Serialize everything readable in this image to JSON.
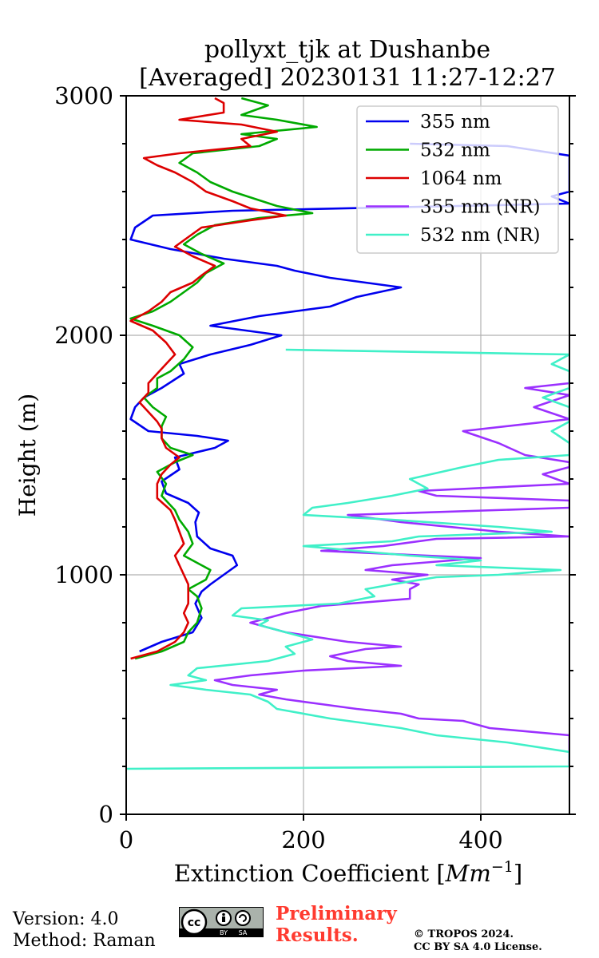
{
  "chart_data": {
    "type": "line",
    "title_line1": "pollyxt_tjk at Dushanbe",
    "title_line2": "[Averaged] 20230131 11:27-12:27",
    "xlabel": "Extinction Coefficient [",
    "xlabel_unit": "Mm",
    "xlabel_exp": "−1",
    "xlabel_close": "]",
    "ylabel": "Height (m)",
    "xlim": [
      0,
      500
    ],
    "ylim": [
      0,
      3000
    ],
    "xticks": [
      0,
      200,
      400
    ],
    "yticks": [
      0,
      1000,
      2000,
      3000
    ],
    "xtick_labels": [
      "0",
      "200",
      "400"
    ],
    "ytick_labels": [
      "0",
      "1000",
      "2000",
      "3000"
    ],
    "grid": true,
    "legend_position": "top-right",
    "series": [
      {
        "name": "355 nm",
        "color": "#0000ee",
        "points": [
          [
            15,
            680
          ],
          [
            40,
            720
          ],
          [
            75,
            760
          ],
          [
            85,
            820
          ],
          [
            78,
            880
          ],
          [
            85,
            930
          ],
          [
            95,
            960
          ],
          [
            110,
            1000
          ],
          [
            125,
            1040
          ],
          [
            120,
            1080
          ],
          [
            95,
            1110
          ],
          [
            80,
            1160
          ],
          [
            78,
            1220
          ],
          [
            82,
            1260
          ],
          [
            70,
            1300
          ],
          [
            45,
            1340
          ],
          [
            40,
            1390
          ],
          [
            60,
            1440
          ],
          [
            55,
            1490
          ],
          [
            100,
            1530
          ],
          [
            115,
            1560
          ],
          [
            80,
            1580
          ],
          [
            25,
            1600
          ],
          [
            5,
            1650
          ],
          [
            10,
            1700
          ],
          [
            20,
            1740
          ],
          [
            40,
            1780
          ],
          [
            65,
            1840
          ],
          [
            60,
            1880
          ],
          [
            95,
            1920
          ],
          [
            140,
            1960
          ],
          [
            175,
            2000
          ],
          [
            95,
            2040
          ],
          [
            150,
            2080
          ],
          [
            230,
            2120
          ],
          [
            260,
            2160
          ],
          [
            310,
            2200
          ],
          [
            230,
            2240
          ],
          [
            190,
            2270
          ],
          [
            170,
            2290
          ],
          [
            110,
            2320
          ],
          [
            50,
            2360
          ],
          [
            5,
            2400
          ],
          [
            10,
            2450
          ],
          [
            30,
            2500
          ],
          [
            120,
            2520
          ],
          [
            500,
            2550
          ],
          [
            480,
            2580
          ],
          [
            500,
            2600
          ],
          [
            500,
            2620
          ],
          [
            500,
            2650
          ],
          [
            500,
            2700
          ],
          [
            500,
            2750
          ],
          [
            430,
            2790
          ],
          [
            320,
            2800
          ]
        ]
      },
      {
        "name": "532 nm",
        "color": "#00aa00",
        "points": [
          [
            10,
            650
          ],
          [
            40,
            680
          ],
          [
            65,
            720
          ],
          [
            70,
            760
          ],
          [
            80,
            800
          ],
          [
            85,
            860
          ],
          [
            80,
            910
          ],
          [
            70,
            940
          ],
          [
            90,
            980
          ],
          [
            95,
            1020
          ],
          [
            80,
            1050
          ],
          [
            65,
            1080
          ],
          [
            75,
            1130
          ],
          [
            70,
            1180
          ],
          [
            60,
            1230
          ],
          [
            55,
            1270
          ],
          [
            40,
            1330
          ],
          [
            45,
            1380
          ],
          [
            35,
            1430
          ],
          [
            55,
            1470
          ],
          [
            75,
            1500
          ],
          [
            50,
            1530
          ],
          [
            40,
            1570
          ],
          [
            40,
            1620
          ],
          [
            45,
            1660
          ],
          [
            30,
            1700
          ],
          [
            20,
            1740
          ],
          [
            35,
            1780
          ],
          [
            35,
            1820
          ],
          [
            50,
            1850
          ],
          [
            65,
            1900
          ],
          [
            75,
            1950
          ],
          [
            60,
            2000
          ],
          [
            30,
            2040
          ],
          [
            5,
            2070
          ],
          [
            30,
            2100
          ],
          [
            50,
            2140
          ],
          [
            65,
            2180
          ],
          [
            80,
            2220
          ],
          [
            90,
            2260
          ],
          [
            110,
            2300
          ],
          [
            85,
            2340
          ],
          [
            65,
            2380
          ],
          [
            80,
            2420
          ],
          [
            100,
            2460
          ],
          [
            150,
            2490
          ],
          [
            210,
            2510
          ],
          [
            170,
            2540
          ],
          [
            145,
            2570
          ],
          [
            120,
            2600
          ],
          [
            95,
            2640
          ],
          [
            80,
            2680
          ],
          [
            60,
            2720
          ],
          [
            75,
            2760
          ],
          [
            150,
            2790
          ],
          [
            170,
            2820
          ],
          [
            130,
            2840
          ],
          [
            215,
            2870
          ],
          [
            170,
            2900
          ],
          [
            130,
            2920
          ],
          [
            160,
            2960
          ],
          [
            130,
            2990
          ]
        ]
      },
      {
        "name": "1064 nm",
        "color": "#dd0000",
        "points": [
          [
            5,
            650
          ],
          [
            35,
            680
          ],
          [
            55,
            720
          ],
          [
            65,
            760
          ],
          [
            70,
            800
          ],
          [
            65,
            840
          ],
          [
            70,
            880
          ],
          [
            70,
            920
          ],
          [
            70,
            960
          ],
          [
            65,
            1000
          ],
          [
            60,
            1040
          ],
          [
            55,
            1080
          ],
          [
            65,
            1130
          ],
          [
            60,
            1180
          ],
          [
            55,
            1230
          ],
          [
            50,
            1270
          ],
          [
            35,
            1320
          ],
          [
            35,
            1380
          ],
          [
            40,
            1420
          ],
          [
            50,
            1460
          ],
          [
            60,
            1490
          ],
          [
            45,
            1530
          ],
          [
            40,
            1570
          ],
          [
            40,
            1610
          ],
          [
            35,
            1640
          ],
          [
            25,
            1680
          ],
          [
            15,
            1720
          ],
          [
            25,
            1760
          ],
          [
            25,
            1800
          ],
          [
            35,
            1840
          ],
          [
            45,
            1880
          ],
          [
            55,
            1920
          ],
          [
            45,
            1970
          ],
          [
            30,
            2020
          ],
          [
            5,
            2060
          ],
          [
            25,
            2100
          ],
          [
            40,
            2140
          ],
          [
            50,
            2180
          ],
          [
            75,
            2220
          ],
          [
            85,
            2250
          ],
          [
            100,
            2290
          ],
          [
            75,
            2330
          ],
          [
            55,
            2370
          ],
          [
            70,
            2410
          ],
          [
            85,
            2450
          ],
          [
            140,
            2480
          ],
          [
            180,
            2500
          ],
          [
            140,
            2530
          ],
          [
            120,
            2560
          ],
          [
            90,
            2600
          ],
          [
            75,
            2640
          ],
          [
            55,
            2680
          ],
          [
            35,
            2710
          ],
          [
            20,
            2740
          ],
          [
            60,
            2760
          ],
          [
            140,
            2790
          ],
          [
            130,
            2820
          ],
          [
            170,
            2850
          ],
          [
            130,
            2880
          ],
          [
            60,
            2900
          ],
          [
            110,
            2930
          ],
          [
            110,
            2970
          ],
          [
            100,
            2990
          ]
        ]
      },
      {
        "name": "355 nm (NR)",
        "color": "#9b30ff",
        "points": [
          [
            500,
            200
          ],
          [
            500,
            250
          ],
          [
            500,
            330
          ],
          [
            410,
            360
          ],
          [
            380,
            390
          ],
          [
            330,
            400
          ],
          [
            310,
            420
          ],
          [
            260,
            440
          ],
          [
            220,
            460
          ],
          [
            180,
            480
          ],
          [
            150,
            500
          ],
          [
            170,
            520
          ],
          [
            120,
            540
          ],
          [
            100,
            560
          ],
          [
            140,
            580
          ],
          [
            200,
            600
          ],
          [
            310,
            620
          ],
          [
            250,
            640
          ],
          [
            230,
            660
          ],
          [
            270,
            690
          ],
          [
            310,
            700
          ],
          [
            250,
            720
          ],
          [
            180,
            760
          ],
          [
            140,
            800
          ],
          [
            180,
            840
          ],
          [
            220,
            870
          ],
          [
            320,
            900
          ],
          [
            320,
            940
          ],
          [
            330,
            960
          ],
          [
            300,
            980
          ],
          [
            340,
            1000
          ],
          [
            270,
            1020
          ],
          [
            300,
            1040
          ],
          [
            400,
            1070
          ],
          [
            220,
            1100
          ],
          [
            290,
            1120
          ],
          [
            350,
            1150
          ],
          [
            500,
            1160
          ],
          [
            420,
            1180
          ],
          [
            310,
            1220
          ],
          [
            250,
            1250
          ],
          [
            500,
            1280
          ],
          [
            500,
            1310
          ],
          [
            350,
            1330
          ],
          [
            330,
            1350
          ],
          [
            500,
            1380
          ],
          [
            470,
            1420
          ],
          [
            500,
            1450
          ],
          [
            500,
            1470
          ],
          [
            450,
            1500
          ],
          [
            420,
            1550
          ],
          [
            380,
            1600
          ],
          [
            500,
            1650
          ],
          [
            460,
            1700
          ],
          [
            500,
            1750
          ],
          [
            450,
            1780
          ],
          [
            500,
            1800
          ]
        ]
      },
      {
        "name": "532 nm (NR)",
        "color": "#40f0c8",
        "points": [
          [
            0,
            190
          ],
          [
            500,
            200
          ],
          [
            500,
            260
          ],
          [
            430,
            300
          ],
          [
            350,
            330
          ],
          [
            310,
            360
          ],
          [
            230,
            400
          ],
          [
            170,
            440
          ],
          [
            160,
            470
          ],
          [
            140,
            500
          ],
          [
            90,
            520
          ],
          [
            50,
            540
          ],
          [
            90,
            560
          ],
          [
            70,
            580
          ],
          [
            80,
            610
          ],
          [
            160,
            640
          ],
          [
            190,
            670
          ],
          [
            180,
            700
          ],
          [
            210,
            730
          ],
          [
            180,
            760
          ],
          [
            150,
            790
          ],
          [
            160,
            810
          ],
          [
            120,
            830
          ],
          [
            130,
            860
          ],
          [
            240,
            880
          ],
          [
            280,
            910
          ],
          [
            270,
            940
          ],
          [
            300,
            960
          ],
          [
            350,
            990
          ],
          [
            420,
            1000
          ],
          [
            490,
            1020
          ],
          [
            350,
            1040
          ],
          [
            400,
            1060
          ],
          [
            320,
            1080
          ],
          [
            260,
            1100
          ],
          [
            200,
            1120
          ],
          [
            300,
            1140
          ],
          [
            330,
            1160
          ],
          [
            480,
            1180
          ],
          [
            420,
            1200
          ],
          [
            300,
            1230
          ],
          [
            200,
            1250
          ],
          [
            210,
            1280
          ],
          [
            250,
            1300
          ],
          [
            300,
            1330
          ],
          [
            340,
            1360
          ],
          [
            320,
            1400
          ],
          [
            380,
            1450
          ],
          [
            420,
            1480
          ],
          [
            500,
            1500
          ],
          [
            500,
            1550
          ],
          [
            480,
            1600
          ],
          [
            500,
            1640
          ],
          [
            500,
            1670
          ],
          [
            500,
            1700
          ],
          [
            470,
            1740
          ],
          [
            500,
            1780
          ],
          [
            500,
            1800
          ],
          [
            500,
            1850
          ],
          [
            480,
            1880
          ],
          [
            500,
            1920
          ],
          [
            180,
            1940
          ]
        ]
      }
    ]
  },
  "footer": {
    "version": "Version: 4.0",
    "method": "Method: Raman",
    "preliminary_line1": "Preliminary",
    "preliminary_line2": "Results.",
    "copyright_line1": "© TROPOS 2024.",
    "copyright_line2": "CC BY SA 4.0 License."
  },
  "license_badge": {
    "text_by": "BY",
    "text_sa": "SA",
    "text_cc": "cc"
  }
}
